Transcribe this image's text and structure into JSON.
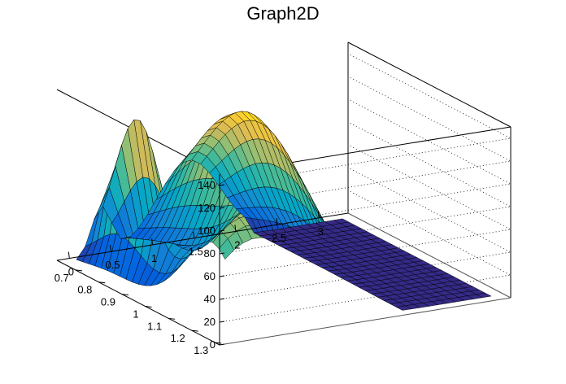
{
  "chart_data": {
    "type": "surface",
    "title": "Graph2D",
    "xlabel": "",
    "ylabel": "",
    "zlabel": "",
    "x_ticks": [
      "0",
      "0.5",
      "1",
      "1.5",
      "2",
      "2.5",
      "3"
    ],
    "y_ticks": [
      "0.7",
      "0.8",
      "0.9",
      "1",
      "1.1",
      "1.2",
      "1.3"
    ],
    "z_ticks": [
      "0",
      "20",
      "40",
      "60",
      "80",
      "100",
      "120",
      "140"
    ],
    "xlim": [
      -0.15,
      3.35
    ],
    "ylim": [
      0.62,
      1.32
    ],
    "zlim": [
      0,
      150
    ],
    "grid": true,
    "colormap": [
      "#352a87",
      "#0363e1",
      "#1485d4",
      "#06a7c6",
      "#38b99e",
      "#92bf73",
      "#d9ba56",
      "#fcce2e",
      "#f9fb0e"
    ]
  }
}
